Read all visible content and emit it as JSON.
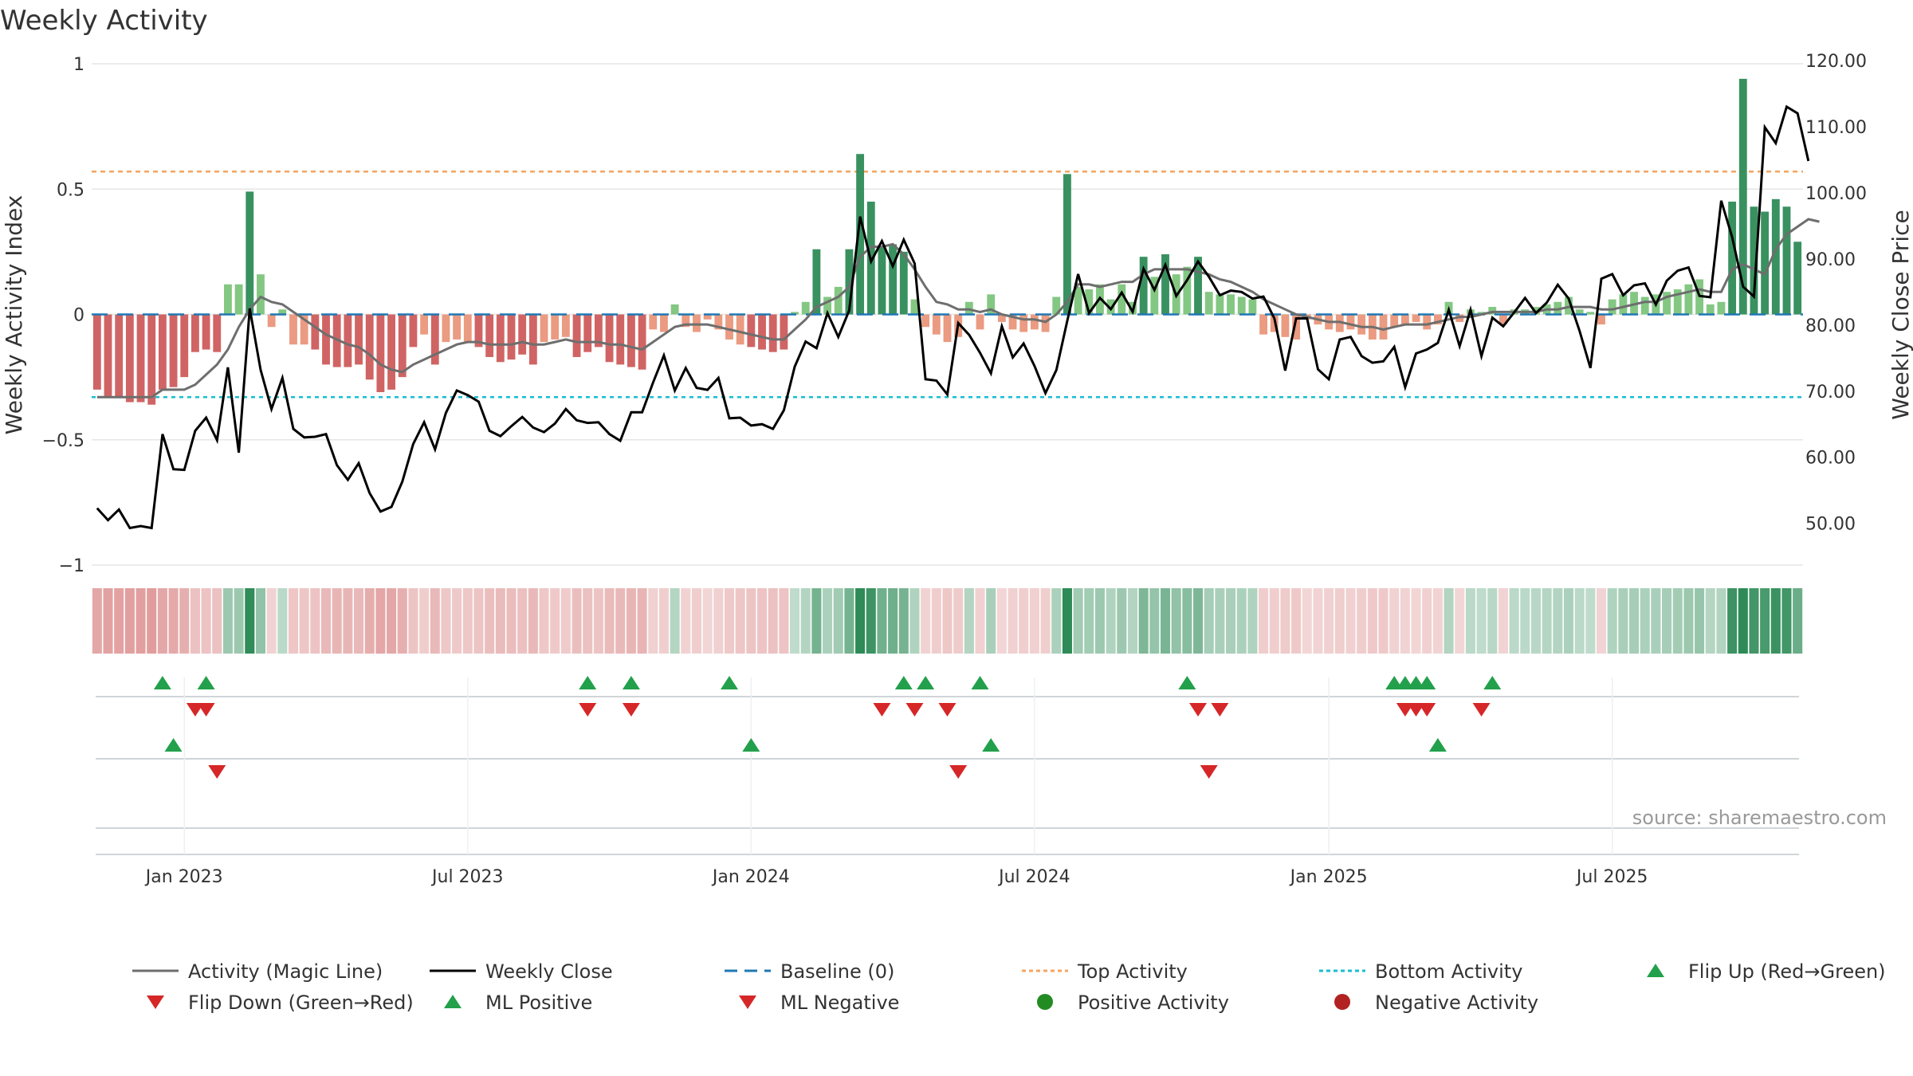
{
  "title": "Weekly Activity",
  "source": "source: sharemaestro.com",
  "colors": {
    "strong_green": "#2e8b57",
    "light_green": "#7cc47c",
    "strong_red": "#cd5c5c",
    "light_red": "#e9967a",
    "magic_line": "#6e6e6e",
    "close_line": "#000000",
    "baseline": "#1f77b4",
    "top_line": "#f4a460",
    "bottom_line": "#17becf",
    "up_marker": "#22a04b",
    "down_marker": "#d62728",
    "grid": "#e6e6e6",
    "text": "#333333"
  },
  "chart_data": {
    "type": "bar",
    "title": "Weekly Activity",
    "start_date": "2022-11-07",
    "frequency": "weekly",
    "y_left": {
      "label": "Weekly Activity Index",
      "range": [
        -1,
        1
      ],
      "ticks": [
        "1",
        "0.5",
        "0",
        "−0.5",
        "−1"
      ],
      "tick_values": [
        1,
        0.5,
        0,
        -0.5,
        -1
      ]
    },
    "y_right": {
      "label": "Weekly Close Price",
      "range": [
        43.7,
        119.5
      ],
      "ticks": [
        "120.00",
        "110.00",
        "100.00",
        "90.00",
        "80.00",
        "70.00",
        "60.00",
        "50.00"
      ],
      "tick_values": [
        120,
        110,
        100,
        90,
        80,
        70,
        60,
        50
      ]
    },
    "x_ticks": [
      {
        "label": "Jan 2023",
        "date": "2023-01-02"
      },
      {
        "label": "Jul 2023",
        "date": "2023-07-03"
      },
      {
        "label": "Jan 2024",
        "date": "2024-01-01"
      },
      {
        "label": "Jul 2024",
        "date": "2024-07-01"
      },
      {
        "label": "Jan 2025",
        "date": "2025-01-06"
      },
      {
        "label": "Jul 2025",
        "date": "2025-07-07"
      }
    ],
    "top_activity": 0.57,
    "bottom_activity": -0.33,
    "baseline": 0,
    "activity": [
      -0.3,
      -0.33,
      -0.33,
      -0.35,
      -0.35,
      -0.36,
      -0.3,
      -0.29,
      -0.25,
      -0.15,
      -0.14,
      -0.15,
      0.12,
      0.12,
      0.49,
      0.16,
      -0.05,
      0.02,
      -0.12,
      -0.12,
      -0.14,
      -0.2,
      -0.21,
      -0.21,
      -0.2,
      -0.26,
      -0.31,
      -0.3,
      -0.25,
      -0.13,
      -0.08,
      -0.2,
      -0.11,
      -0.1,
      -0.11,
      -0.13,
      -0.17,
      -0.19,
      -0.18,
      -0.16,
      -0.2,
      -0.11,
      -0.1,
      -0.09,
      -0.17,
      -0.15,
      -0.13,
      -0.19,
      -0.2,
      -0.21,
      -0.22,
      -0.06,
      -0.07,
      0.04,
      -0.05,
      -0.07,
      -0.02,
      -0.06,
      -0.1,
      -0.12,
      -0.13,
      -0.14,
      -0.15,
      -0.14,
      0.01,
      0.05,
      0.26,
      0.07,
      0.11,
      0.26,
      0.64,
      0.45,
      0.27,
      0.28,
      0.25,
      0.06,
      -0.05,
      -0.08,
      -0.11,
      -0.09,
      0.05,
      -0.06,
      0.08,
      -0.03,
      -0.06,
      -0.07,
      -0.06,
      -0.07,
      0.07,
      0.56,
      0.11,
      0.1,
      0.12,
      0.06,
      0.12,
      0.05,
      0.23,
      0.15,
      0.24,
      0.16,
      0.19,
      0.23,
      0.09,
      0.08,
      0.08,
      0.07,
      0.06,
      -0.08,
      -0.07,
      -0.09,
      -0.1,
      -0.02,
      -0.04,
      -0.06,
      -0.07,
      -0.06,
      -0.08,
      -0.1,
      -0.1,
      -0.05,
      -0.04,
      -0.03,
      -0.06,
      -0.04,
      0.05,
      -0.03,
      0.02,
      0.01,
      0.03,
      -0.04,
      0.02,
      0.02,
      0.03,
      0.04,
      0.05,
      0.07,
      0.02,
      0.01,
      -0.04,
      0.06,
      0.08,
      0.09,
      0.07,
      0.08,
      0.09,
      0.1,
      0.12,
      0.14,
      0.04,
      0.05,
      0.45,
      0.94,
      0.43,
      0.41,
      0.46,
      0.43,
      0.29
    ],
    "magic_line": [
      -0.33,
      -0.33,
      -0.33,
      -0.33,
      -0.33,
      -0.33,
      -0.3,
      -0.3,
      -0.3,
      -0.28,
      -0.24,
      -0.2,
      -0.14,
      -0.05,
      0.02,
      0.07,
      0.05,
      0.04,
      0.01,
      -0.02,
      -0.05,
      -0.08,
      -0.1,
      -0.12,
      -0.13,
      -0.16,
      -0.2,
      -0.22,
      -0.23,
      -0.2,
      -0.18,
      -0.16,
      -0.14,
      -0.12,
      -0.11,
      -0.11,
      -0.12,
      -0.12,
      -0.12,
      -0.11,
      -0.12,
      -0.12,
      -0.11,
      -0.1,
      -0.11,
      -0.11,
      -0.11,
      -0.12,
      -0.12,
      -0.13,
      -0.14,
      -0.11,
      -0.08,
      -0.05,
      -0.04,
      -0.04,
      -0.04,
      -0.05,
      -0.06,
      -0.07,
      -0.08,
      -0.09,
      -0.1,
      -0.1,
      -0.06,
      -0.02,
      0.03,
      0.05,
      0.07,
      0.11,
      0.23,
      0.27,
      0.27,
      0.28,
      0.24,
      0.18,
      0.11,
      0.05,
      0.04,
      0.02,
      0.02,
      0.01,
      0.02,
      0.0,
      -0.01,
      -0.02,
      -0.02,
      -0.03,
      0.0,
      0.05,
      0.12,
      0.12,
      0.11,
      0.12,
      0.13,
      0.13,
      0.16,
      0.18,
      0.18,
      0.18,
      0.18,
      0.17,
      0.16,
      0.14,
      0.13,
      0.11,
      0.09,
      0.06,
      0.04,
      0.02,
      0.0,
      -0.01,
      -0.02,
      -0.03,
      -0.03,
      -0.04,
      -0.05,
      -0.05,
      -0.06,
      -0.05,
      -0.04,
      -0.04,
      -0.04,
      -0.03,
      -0.02,
      -0.01,
      -0.01,
      0.0,
      0.01,
      0.01,
      0.01,
      0.01,
      0.01,
      0.02,
      0.02,
      0.03,
      0.03,
      0.03,
      0.02,
      0.02,
      0.03,
      0.04,
      0.05,
      0.05,
      0.07,
      0.08,
      0.09,
      0.1,
      0.09,
      0.09,
      0.18,
      0.2,
      0.18,
      0.16,
      0.26,
      0.32,
      0.35,
      0.38,
      0.37
    ],
    "weekly_close": [
      52.3,
      50.5,
      52.1,
      49.3,
      49.6,
      49.3,
      63.5,
      58.2,
      58.1,
      64.0,
      66.0,
      62.6,
      73.6,
      60.7,
      82.5,
      73.2,
      67.3,
      72.0,
      64.3,
      63.0,
      63.1,
      63.5,
      58.8,
      56.6,
      59.1,
      54.6,
      51.8,
      52.5,
      56.3,
      62.0,
      65.3,
      61.2,
      66.7,
      70.1,
      69.4,
      68.4,
      64.0,
      63.2,
      64.7,
      66.1,
      64.5,
      63.8,
      65.1,
      67.3,
      65.6,
      65.2,
      65.3,
      63.5,
      62.5,
      66.8,
      66.8,
      71.3,
      75.4,
      70.1,
      73.5,
      70.5,
      70.2,
      72.0,
      65.9,
      66.0,
      64.8,
      65.0,
      64.3,
      67.1,
      73.7,
      77.5,
      76.5,
      81.8,
      78.2,
      82.2,
      96.4,
      89.6,
      92.7,
      88.9,
      92.9,
      89.3,
      71.8,
      71.6,
      69.5,
      80.3,
      78.5,
      75.8,
      72.7,
      79.8,
      75.1,
      77.2,
      73.8,
      69.7,
      73.2,
      80.6,
      87.7,
      81.8,
      84.1,
      82.4,
      84.9,
      82.0,
      88.5,
      85.3,
      89.1,
      84.4,
      86.8,
      89.6,
      87.3,
      84.5,
      85.2,
      85.0,
      84.0,
      84.3,
      81.0,
      73.1,
      81.0,
      81.0,
      73.3,
      71.8,
      77.8,
      78.2,
      75.3,
      74.3,
      74.5,
      76.7,
      70.6,
      75.7,
      76.3,
      77.3,
      82.3,
      76.8,
      82.3,
      75.3,
      81.1,
      79.8,
      81.9,
      84.1,
      81.8,
      83.4,
      86.1,
      84.0,
      79.1,
      73.5,
      87.0,
      87.7,
      84.5,
      86.0,
      86.3,
      83.1,
      86.7,
      88.2,
      88.7,
      84.4,
      84.2,
      98.8,
      93.3,
      85.8,
      84.3,
      109.9,
      107.5,
      113.0,
      112.0,
      104.8
    ],
    "heat_strip": {
      "description": "per-week colour strip coloured by activity sign and strength"
    },
    "signal_rows": [
      {
        "row": 1,
        "up": [
          "2022-12-19",
          "2023-01-16",
          "2023-09-18",
          "2023-10-16",
          "2023-12-18",
          "2024-04-08",
          "2024-04-22",
          "2024-05-27",
          "2024-10-07",
          "2025-02-17",
          "2025-02-24",
          "2025-03-03",
          "2025-03-10",
          "2025-04-21"
        ],
        "down": [
          "2023-01-09",
          "2023-01-16",
          "2023-09-18",
          "2023-10-16",
          "2024-03-25",
          "2024-04-15",
          "2024-05-06",
          "2024-10-14",
          "2024-10-28",
          "2025-02-24",
          "2025-03-03",
          "2025-03-10",
          "2025-04-14"
        ]
      },
      {
        "row": 2,
        "up": [
          "2022-12-26",
          "2024-01-01",
          "2024-06-03",
          "2025-03-17"
        ],
        "down": [
          "2023-01-23",
          "2024-05-13",
          "2024-10-21"
        ]
      },
      {
        "row": 3,
        "up": [],
        "down": []
      }
    ]
  },
  "legend": [
    {
      "label": "Activity (Magic Line)",
      "icon": "gray-line-icon"
    },
    {
      "label": "Weekly Close",
      "icon": "black-line-icon"
    },
    {
      "label": "Baseline (0)",
      "icon": "blue-dash-line-icon"
    },
    {
      "label": "Top Activity",
      "icon": "orange-dotted-line-icon"
    },
    {
      "label": "Bottom Activity",
      "icon": "cyan-dotted-line-icon"
    },
    {
      "label": "Flip Up (Red→Green)",
      "icon": "green-up-triangle-icon"
    },
    {
      "label": "Flip Down (Green→Red)",
      "icon": "red-down-triangle-icon"
    },
    {
      "label": "ML Positive",
      "icon": "green-up-triangle-icon"
    },
    {
      "label": "ML Negative",
      "icon": "red-down-triangle-icon"
    },
    {
      "label": "Positive Activity",
      "icon": "green-circle-icon"
    },
    {
      "label": "Negative Activity",
      "icon": "red-circle-icon"
    }
  ]
}
